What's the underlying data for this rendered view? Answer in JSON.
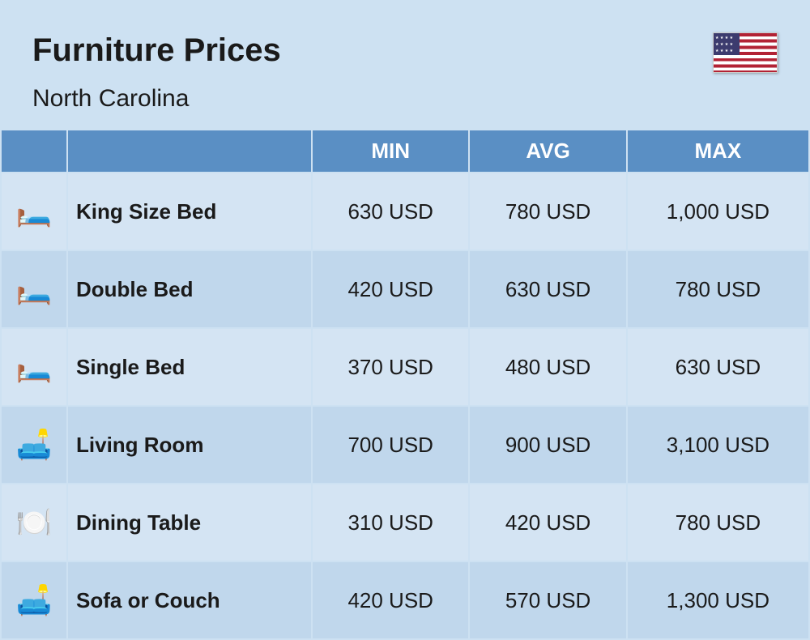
{
  "header": {
    "title": "Furniture Prices",
    "subtitle": "North Carolina"
  },
  "table": {
    "columns": {
      "min": "MIN",
      "avg": "AVG",
      "max": "MAX"
    },
    "rows": [
      {
        "icon": "🛏️",
        "name": "King Size Bed",
        "min": "630 USD",
        "avg": "780 USD",
        "max": "1,000 USD"
      },
      {
        "icon": "🛏️",
        "name": "Double Bed",
        "min": "420 USD",
        "avg": "630 USD",
        "max": "780 USD"
      },
      {
        "icon": "🛏️",
        "name": "Single Bed",
        "min": "370 USD",
        "avg": "480 USD",
        "max": "630 USD"
      },
      {
        "icon": "🛋️",
        "name": "Living Room",
        "min": "700 USD",
        "avg": "900 USD",
        "max": "3,100 USD"
      },
      {
        "icon": "🍽️",
        "name": "Dining Table",
        "min": "310 USD",
        "avg": "420 USD",
        "max": "780 USD"
      },
      {
        "icon": "🛋️",
        "name": "Sofa or Couch",
        "min": "420 USD",
        "avg": "570 USD",
        "max": "1,300 USD"
      }
    ]
  },
  "colors": {
    "background": "#cde1f2",
    "header_bg": "#5a8fc4",
    "header_text": "#ffffff",
    "row_odd": "#d4e4f3",
    "row_even": "#c0d7ec",
    "text": "#1a1a1a"
  },
  "typography": {
    "title_fontsize": 40,
    "subtitle_fontsize": 30,
    "header_fontsize": 26,
    "cell_fontsize": 26,
    "icon_fontsize": 36
  }
}
